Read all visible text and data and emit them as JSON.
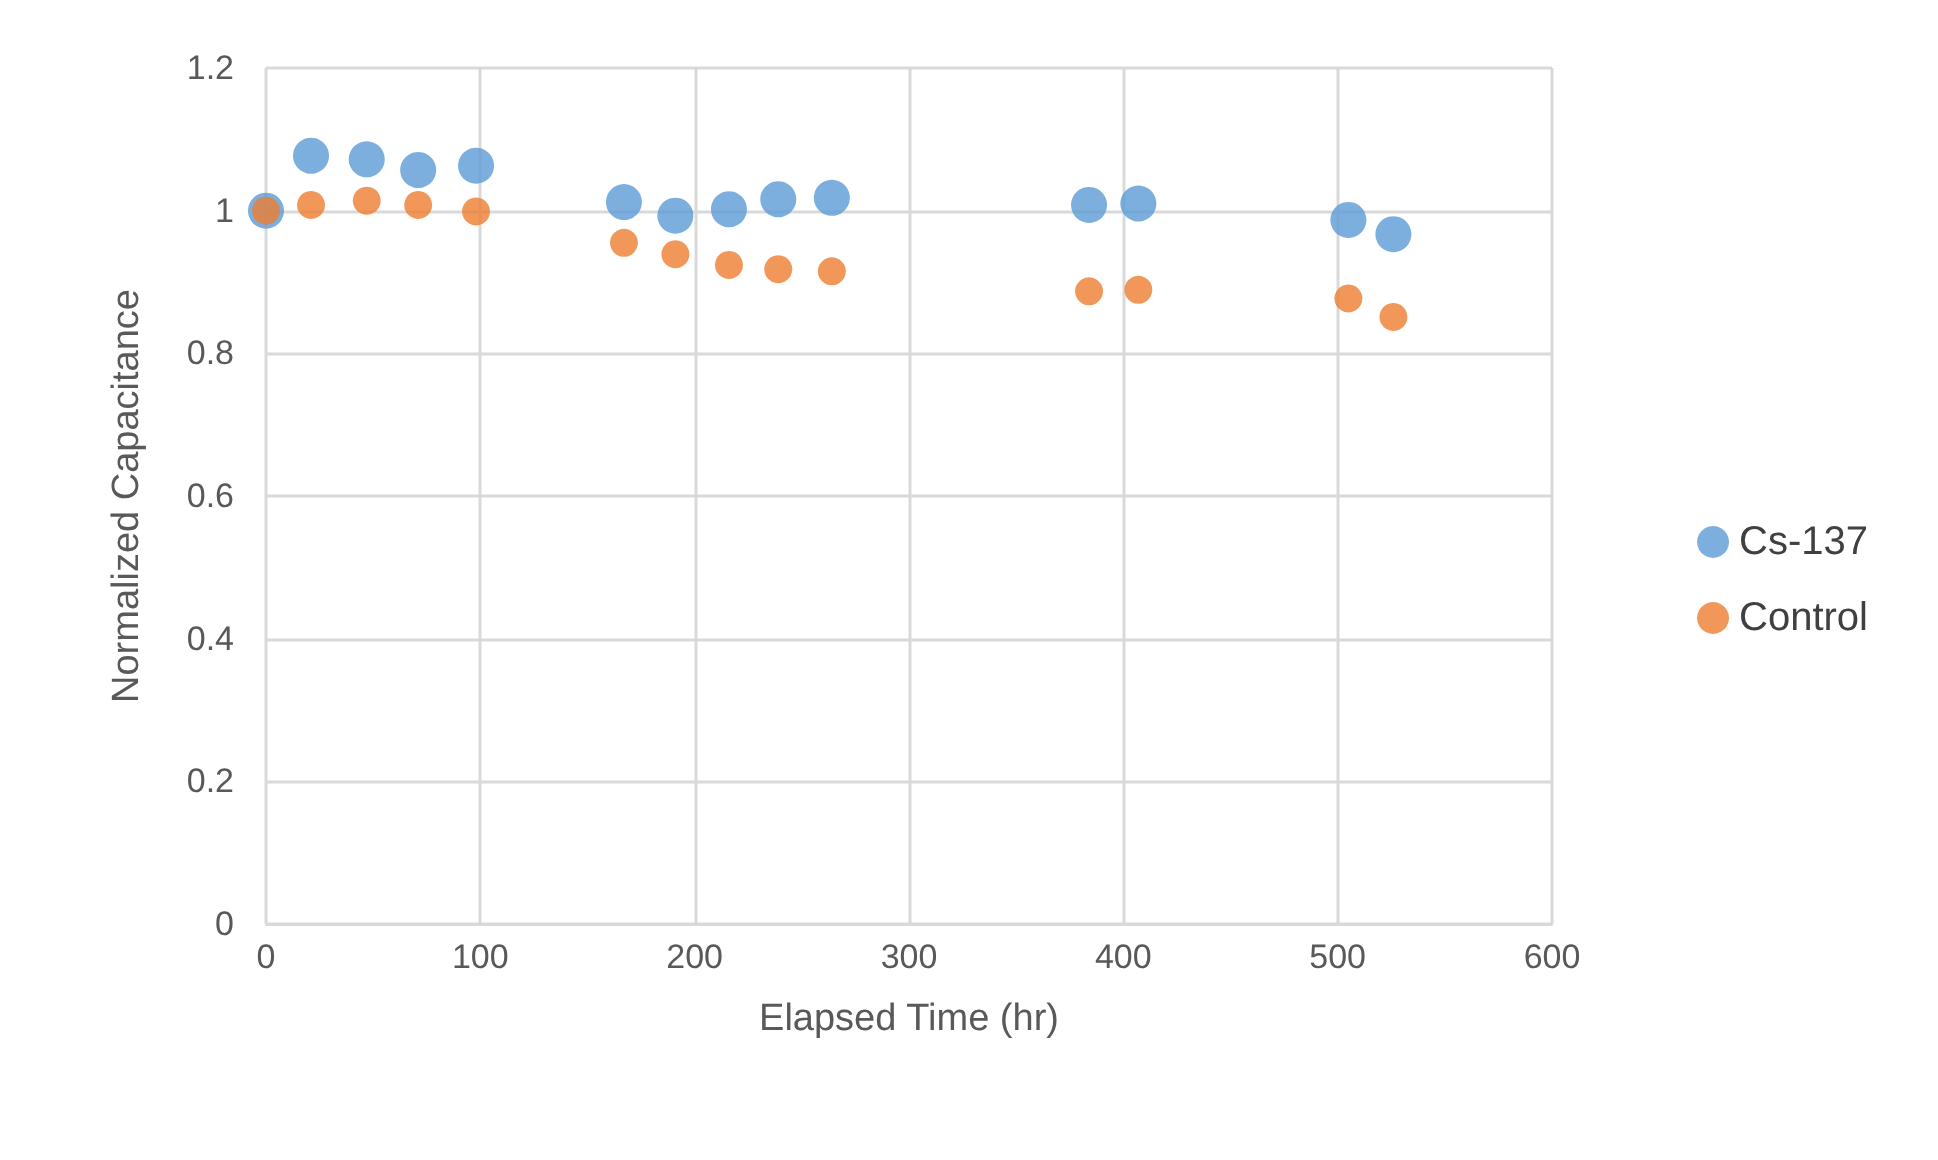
{
  "chart_data": {
    "type": "scatter",
    "xlabel": "Elapsed Time (hr)",
    "ylabel": "Normalized Capacitance",
    "x": [
      0,
      21,
      47,
      71,
      98,
      167,
      191,
      216,
      239,
      264,
      384,
      407,
      505,
      526
    ],
    "series": [
      {
        "name": "Cs-137",
        "color": "#5b9bd5",
        "values": [
          1.0,
          1.077,
          1.072,
          1.057,
          1.063,
          1.012,
          0.993,
          1.002,
          1.016,
          1.018,
          1.008,
          1.01,
          0.987,
          0.967
        ]
      },
      {
        "name": "Control",
        "color": "#ed7d31",
        "values": [
          1.0,
          1.008,
          1.014,
          1.008,
          0.999,
          0.955,
          0.939,
          0.924,
          0.918,
          0.915,
          0.887,
          0.889,
          0.877,
          0.851
        ]
      }
    ],
    "xlim": [
      0,
      600
    ],
    "xticks": [
      0,
      100,
      200,
      300,
      400,
      500,
      600
    ],
    "ylim": [
      0,
      1.2
    ],
    "yticks": [
      0,
      0.2,
      0.4,
      0.6,
      0.8,
      1,
      1.2
    ],
    "grid": true,
    "legend": "right",
    "marker": "circle"
  }
}
